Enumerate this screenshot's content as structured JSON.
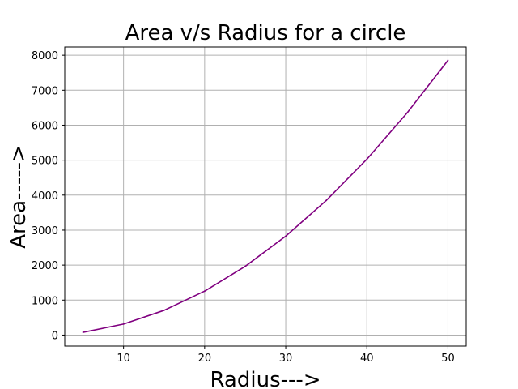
{
  "chart_data": {
    "type": "line",
    "title": "Area v/s Radius for a circle",
    "xlabel": "Radius--->",
    "ylabel": "Area----->",
    "x": [
      5,
      10,
      15,
      20,
      25,
      30,
      35,
      40,
      45,
      50
    ],
    "series": [
      {
        "values": [
          78.5,
          314.2,
          706.9,
          1256.6,
          1963.5,
          2827.4,
          3848.5,
          5026.5,
          6361.7,
          7853.98
        ]
      }
    ],
    "xlim": [
      2.75,
      52.25
    ],
    "ylim": [
      -314,
      8235
    ],
    "xticks": [
      10,
      20,
      30,
      40,
      50
    ],
    "yticks": [
      0,
      1000,
      2000,
      3000,
      4000,
      5000,
      6000,
      7000,
      8000
    ],
    "xtick_labels": [
      "10",
      "20",
      "30",
      "40",
      "50"
    ],
    "ytick_labels": [
      "0",
      "1000",
      "2000",
      "3000",
      "4000",
      "5000",
      "6000",
      "7000",
      "8000"
    ],
    "grid": true,
    "line_color": "#800080",
    "grid_color": "#b0b0b0"
  }
}
